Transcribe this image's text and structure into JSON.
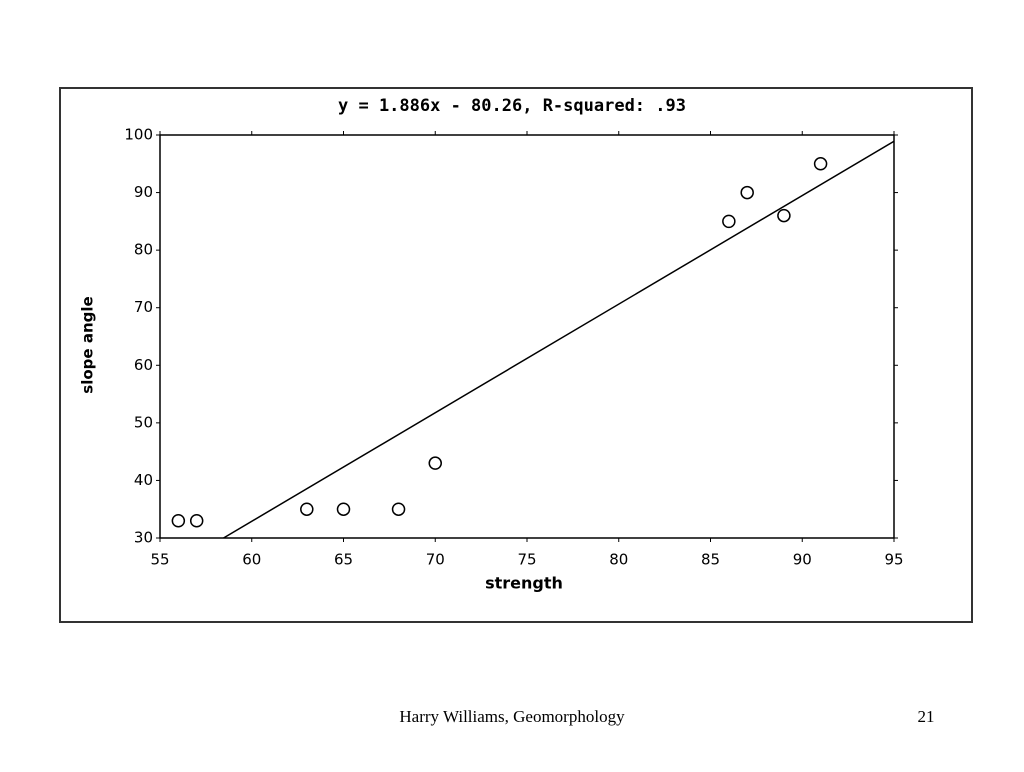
{
  "chart_data": {
    "type": "scatter",
    "title": "y = 1.886x - 80.26, R-squared: .93",
    "x_label": "strength",
    "y_label": "slope angle",
    "x": [
      56,
      57,
      63,
      65,
      68,
      70,
      86,
      87,
      89,
      91
    ],
    "values": [
      33,
      33,
      35,
      35,
      35,
      43,
      85,
      90,
      86,
      95
    ],
    "fit": {
      "slope": 1.886,
      "intercept": -80.26
    },
    "xlim": [
      55,
      95
    ],
    "xticks": [
      55,
      60,
      65,
      70,
      75,
      80,
      85,
      90,
      95
    ],
    "ylim": [
      30,
      100
    ],
    "yticks": [
      30,
      40,
      50,
      60,
      70,
      80,
      90,
      100
    ],
    "color": "#000000"
  },
  "footer": {
    "author": "Harry Williams, Geomorphology",
    "page": "21"
  }
}
